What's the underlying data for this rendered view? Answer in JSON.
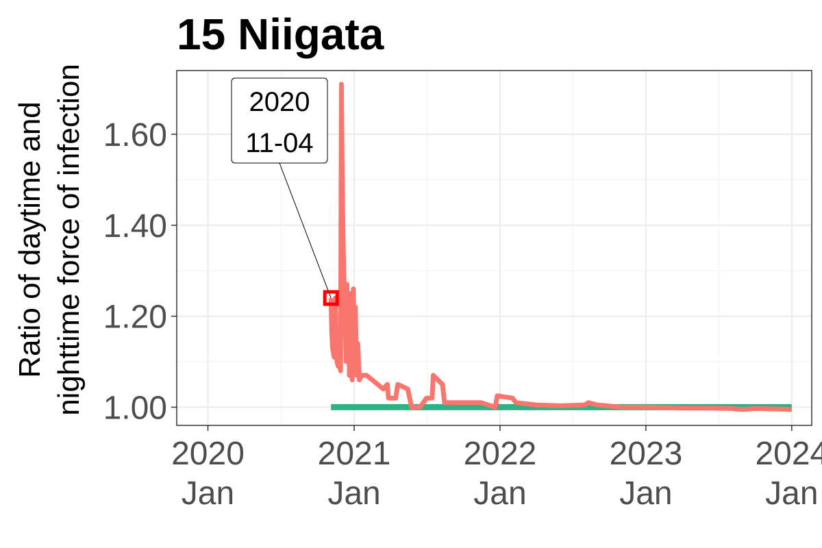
{
  "chart_data": {
    "type": "line",
    "title": "15 Niigata",
    "ylabel_lines": [
      "Ratio of daytime and",
      "nighttime force of infection"
    ],
    "xlabel": "",
    "xlim": [
      "2019-10-15",
      "2024-02-20"
    ],
    "ylim": [
      0.96,
      1.74
    ],
    "grid": true,
    "legend": "none",
    "y_ticks": [
      {
        "value": 1.0,
        "label": "1.00"
      },
      {
        "value": 1.2,
        "label": "1.20"
      },
      {
        "value": 1.4,
        "label": "1.40"
      },
      {
        "value": 1.6,
        "label": "1.60"
      }
    ],
    "x_ticks": [
      {
        "date": "2020-01-01",
        "line1": "2020",
        "line2": "Jan"
      },
      {
        "date": "2021-01-01",
        "line1": "2021",
        "line2": "Jan"
      },
      {
        "date": "2022-01-01",
        "line1": "2022",
        "line2": "Jan"
      },
      {
        "date": "2023-01-01",
        "line1": "2023",
        "line2": "Jan"
      },
      {
        "date": "2024-01-01",
        "line1": "2024",
        "line2": "Jan"
      }
    ],
    "series": [
      {
        "color": "#f8766d",
        "points": [
          [
            "2020-11-04",
            1.24
          ],
          [
            "2020-11-06",
            1.16
          ],
          [
            "2020-11-08",
            1.13
          ],
          [
            "2020-11-10",
            1.12
          ],
          [
            "2020-11-12",
            1.11
          ],
          [
            "2020-11-14",
            1.11
          ],
          [
            "2020-11-15",
            1.24
          ],
          [
            "2020-11-17",
            1.13
          ],
          [
            "2020-11-19",
            1.1
          ],
          [
            "2020-11-22",
            1.09
          ],
          [
            "2020-11-25",
            1.1
          ],
          [
            "2020-11-28",
            1.08
          ],
          [
            "2020-11-30",
            1.71
          ],
          [
            "2020-12-02",
            1.52
          ],
          [
            "2020-12-04",
            1.38
          ],
          [
            "2020-12-06",
            1.3
          ],
          [
            "2020-12-08",
            1.22
          ],
          [
            "2020-12-10",
            1.17
          ],
          [
            "2020-12-12",
            1.1
          ],
          [
            "2020-12-14",
            1.27
          ],
          [
            "2020-12-16",
            1.12
          ],
          [
            "2020-12-18",
            1.24
          ],
          [
            "2020-12-20",
            1.07
          ],
          [
            "2020-12-22",
            1.25
          ],
          [
            "2020-12-24",
            1.09
          ],
          [
            "2020-12-27",
            1.06
          ],
          [
            "2020-12-30",
            1.26
          ],
          [
            "2021-01-02",
            1.1
          ],
          [
            "2021-01-04",
            1.22
          ],
          [
            "2021-01-07",
            1.07
          ],
          [
            "2021-01-10",
            1.14
          ],
          [
            "2021-01-14",
            1.06
          ],
          [
            "2021-01-20",
            1.07
          ],
          [
            "2021-02-01",
            1.07
          ],
          [
            "2021-02-15",
            1.06
          ],
          [
            "2021-03-01",
            1.05
          ],
          [
            "2021-03-15",
            1.04
          ],
          [
            "2021-03-25",
            1.05
          ],
          [
            "2021-03-28",
            1.02
          ],
          [
            "2021-04-15",
            1.02
          ],
          [
            "2021-04-20",
            1.05
          ],
          [
            "2021-05-15",
            1.04
          ],
          [
            "2021-05-25",
            1.0
          ],
          [
            "2021-06-15",
            1.0
          ],
          [
            "2021-07-01",
            1.02
          ],
          [
            "2021-07-15",
            1.02
          ],
          [
            "2021-07-18",
            1.07
          ],
          [
            "2021-08-10",
            1.05
          ],
          [
            "2021-08-15",
            1.01
          ],
          [
            "2021-09-15",
            1.01
          ],
          [
            "2021-10-15",
            1.01
          ],
          [
            "2021-11-15",
            1.01
          ],
          [
            "2021-12-20",
            1.0
          ],
          [
            "2021-12-25",
            1.025
          ],
          [
            "2022-02-01",
            1.02
          ],
          [
            "2022-02-10",
            1.01
          ],
          [
            "2022-04-01",
            1.005
          ],
          [
            "2022-06-01",
            1.003
          ],
          [
            "2022-08-01",
            1.005
          ],
          [
            "2022-08-10",
            1.01
          ],
          [
            "2022-09-01",
            1.005
          ],
          [
            "2022-11-01",
            1.0
          ],
          [
            "2023-01-01",
            1.0
          ],
          [
            "2023-04-01",
            0.998
          ],
          [
            "2023-06-01",
            0.998
          ],
          [
            "2023-08-01",
            0.997
          ],
          [
            "2023-09-01",
            0.995
          ],
          [
            "2023-10-01",
            0.997
          ],
          [
            "2023-12-01",
            0.996
          ],
          [
            "2024-01-01",
            0.995
          ]
        ]
      },
      {
        "color": "#2bb385",
        "points": [
          [
            "2020-11-04",
            1.0
          ],
          [
            "2024-01-01",
            1.0
          ]
        ]
      }
    ],
    "annotation": {
      "line1": "2020",
      "line2": "11-04",
      "date": "2020-11-04",
      "value": 1.24,
      "marker_color": "#ff0000"
    }
  }
}
